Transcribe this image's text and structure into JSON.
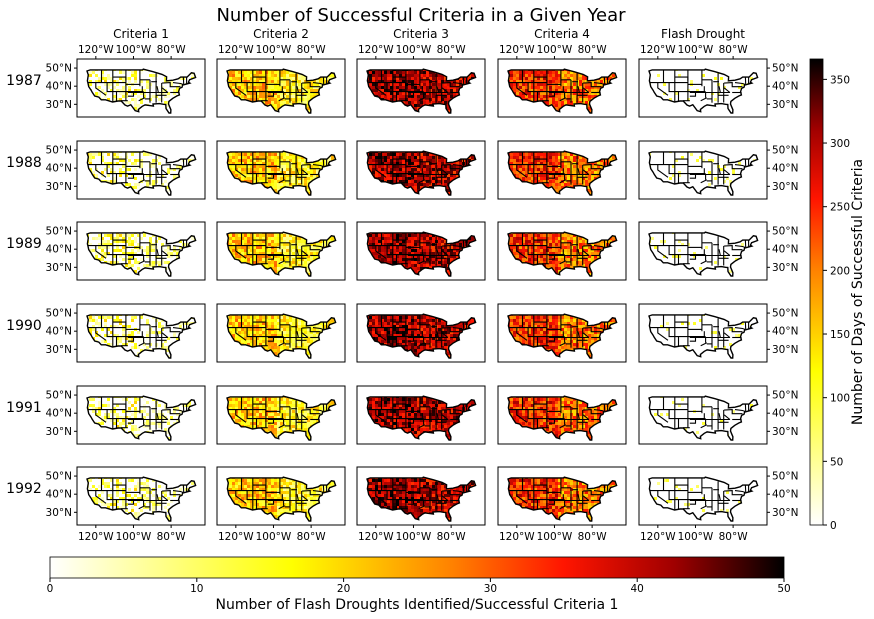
{
  "title": "Number of Successful Criteria in a Given Year",
  "columns": [
    "Criteria 1",
    "Criteria 2",
    "Criteria 3",
    "Criteria 4",
    "Flash Drought"
  ],
  "rows": [
    "1987",
    "1988",
    "1989",
    "1990",
    "1991",
    "1992"
  ],
  "lon_ticks": [
    "120°W",
    "100°W",
    "80°W"
  ],
  "lat_ticks": [
    "50°N",
    "40°N",
    "30°N"
  ],
  "colors": {
    "cmap_low": "#ffffff",
    "cmap_mid1": "#ffff00",
    "cmap_mid2": "#ff8000",
    "cmap_mid3": "#ff0000",
    "cmap_high": "#000000"
  },
  "chart_data": {
    "type": "heatmap",
    "title": "Number of Successful Criteria in a Given Year",
    "panels": "map grid: rows = years, columns = criteria",
    "intensity_by_column": {
      "Criteria 1": "low",
      "Criteria 2": "low-medium",
      "Criteria 3": "high",
      "Criteria 4": "medium-high",
      "Flash Drought": "very low"
    },
    "colorbar_right": {
      "label": "Number of Days of Successful Criteria",
      "ticks": [
        0,
        50,
        100,
        150,
        200,
        250,
        300,
        350
      ],
      "range": [
        0,
        366
      ]
    },
    "colorbar_bottom": {
      "label": "Number of Flash Droughts Identified/Successful Criteria 1",
      "ticks": [
        0,
        10,
        20,
        30,
        40,
        50
      ],
      "range": [
        0,
        50
      ]
    }
  }
}
